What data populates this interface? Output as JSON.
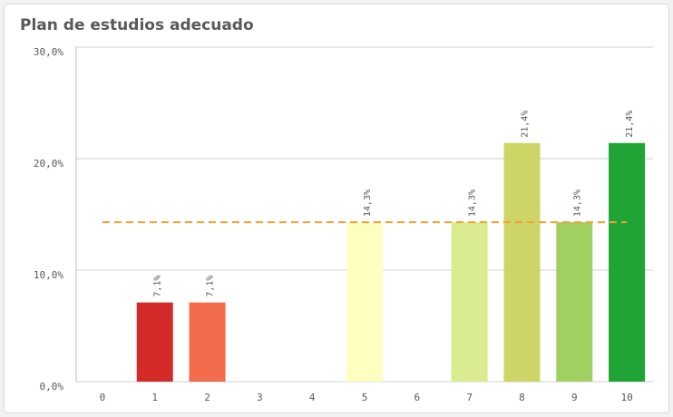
{
  "chart_data": {
    "type": "bar",
    "title": "Plan de estudios adecuado",
    "categories": [
      "0",
      "1",
      "2",
      "3",
      "4",
      "5",
      "6",
      "7",
      "8",
      "9",
      "10"
    ],
    "values": [
      null,
      7.1,
      7.1,
      null,
      null,
      14.3,
      null,
      14.3,
      21.4,
      14.3,
      21.4
    ],
    "value_labels": [
      null,
      "7,1%",
      "7,1%",
      null,
      null,
      "14,3%",
      null,
      "14,3%",
      "21,4%",
      "14,3%",
      "21,4%"
    ],
    "colors": [
      null,
      "#d42a2a",
      "#f26b4a",
      null,
      null,
      "#fefec0",
      null,
      "#d9ec8f",
      "#cdd566",
      "#a0cf62",
      "#1ea535"
    ],
    "ylim": [
      0,
      30
    ],
    "yticks": [
      {
        "value": 0,
        "label": "0,0%"
      },
      {
        "value": 10,
        "label": "10,0%"
      },
      {
        "value": 20,
        "label": "20,0%"
      },
      {
        "value": 30,
        "label": "30,0%"
      }
    ],
    "grid": true,
    "reference_line": {
      "value": 14.3,
      "color": "#f5a030"
    }
  }
}
